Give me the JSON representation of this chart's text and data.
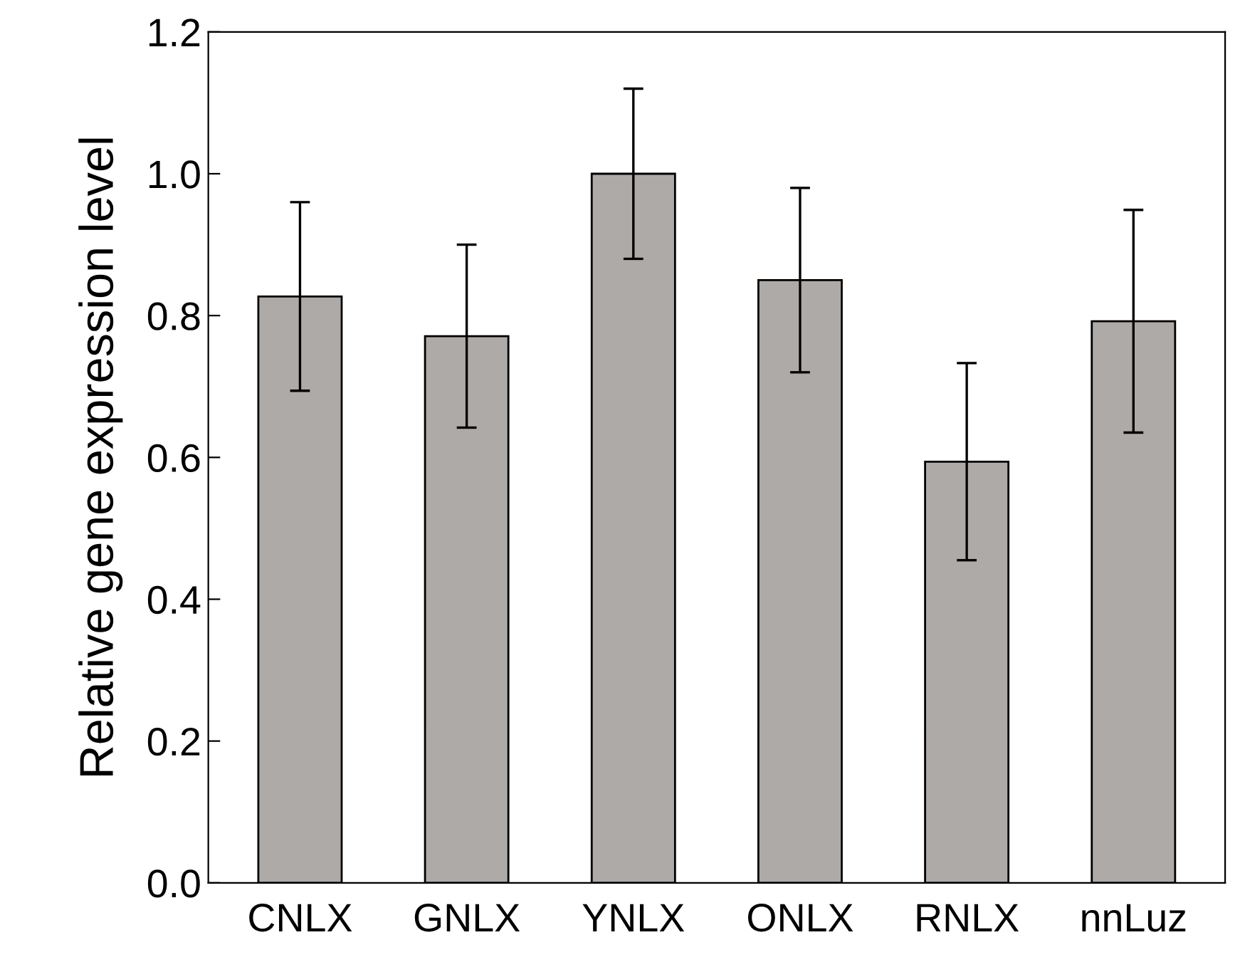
{
  "chart_data": {
    "type": "bar",
    "ylabel": "Relative gene expression level",
    "categories": [
      "CNLX",
      "GNLX",
      "YNLX",
      "ONLX",
      "RNLX",
      "nnLuz"
    ],
    "values": [
      0.827,
      0.771,
      1.0,
      0.85,
      0.594,
      0.792
    ],
    "errors": [
      0.133,
      0.129,
      0.12,
      0.13,
      0.139,
      0.157
    ],
    "color": "#aeaaa7",
    "ylim": [
      0,
      1.2
    ],
    "yticks": [
      {
        "value": 0,
        "label": "0.0"
      },
      {
        "value": 0.2,
        "label": "0.2"
      },
      {
        "value": 0.4,
        "label": "0.4"
      },
      {
        "value": 0.6,
        "label": "0.6"
      },
      {
        "value": 0.8,
        "label": "0.8"
      },
      {
        "value": 1.0,
        "label": "1.0"
      },
      {
        "value": 1.2,
        "label": "1.2"
      }
    ],
    "grid": false,
    "legend": false
  }
}
